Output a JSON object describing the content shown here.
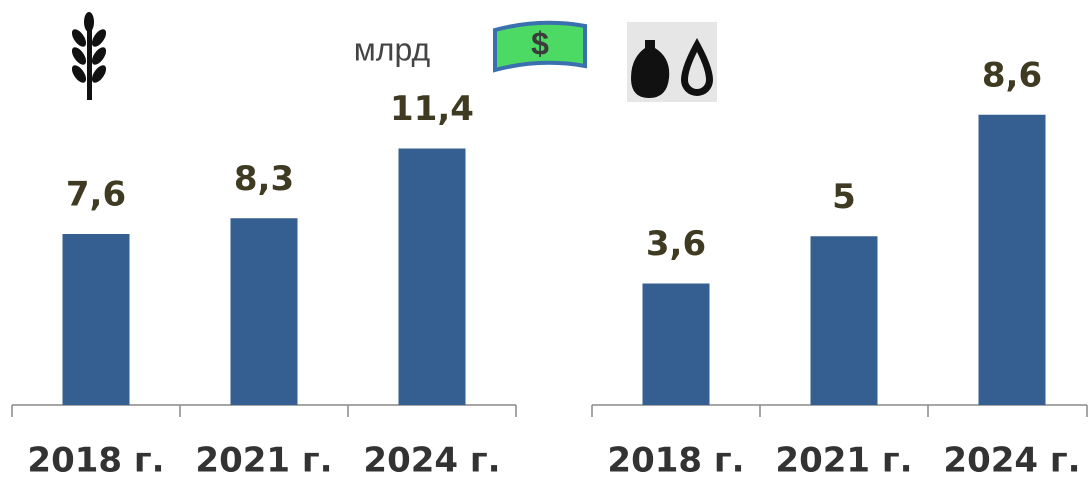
{
  "chart_data": [
    {
      "type": "bar",
      "annotation": "млрд",
      "categories": [
        "2018 г.",
        "2021 г.",
        "2024 г."
      ],
      "values": [
        7.6,
        8.3,
        11.4
      ],
      "value_labels": [
        "7,6",
        "8,3",
        "11,4"
      ],
      "color": "#365f91",
      "ylim": [
        0,
        12
      ]
    },
    {
      "type": "bar",
      "categories": [
        "2018 г.",
        "2021 г.",
        "2024 г."
      ],
      "values": [
        3.6,
        5,
        8.6
      ],
      "value_labels": [
        "3,6",
        "5",
        "8,6"
      ],
      "color": "#365f91",
      "ylim": [
        0,
        8
      ]
    }
  ]
}
